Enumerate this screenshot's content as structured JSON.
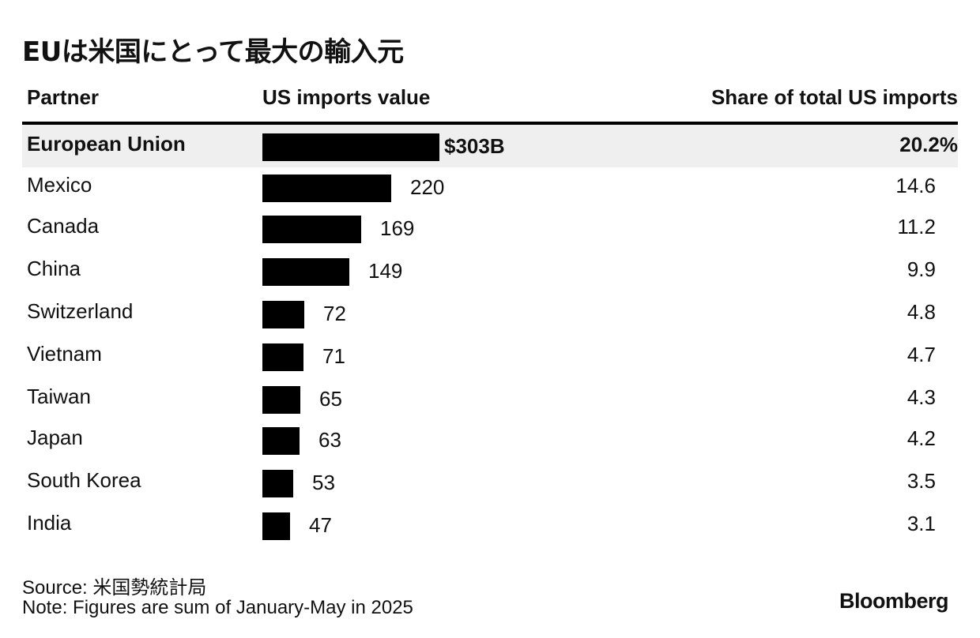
{
  "title": "EUは米国にとって最大の輸入元",
  "columns": {
    "partner": "Partner",
    "value": "US imports value",
    "share": "Share of total US imports"
  },
  "chart_data": {
    "type": "bar",
    "orientation": "horizontal",
    "title": "EUは米国にとって最大の輸入元",
    "categories": [
      "European Union",
      "Mexico",
      "Canada",
      "China",
      "Switzerland",
      "Vietnam",
      "Taiwan",
      "Japan",
      "South Korea",
      "India"
    ],
    "values": [
      303,
      220,
      169,
      149,
      72,
      71,
      65,
      63,
      53,
      47
    ],
    "value_labels": [
      "$303B",
      "220",
      "169",
      "149",
      "72",
      "71",
      "65",
      "63",
      "53",
      "47"
    ],
    "shares": [
      20.2,
      14.6,
      11.2,
      9.9,
      4.8,
      4.7,
      4.3,
      4.2,
      3.5,
      3.1
    ],
    "share_labels": [
      "20.2%",
      "14.6",
      "11.2",
      "9.9",
      "4.8",
      "4.7",
      "4.3",
      "4.2",
      "3.5",
      "3.1"
    ],
    "highlight_index": 0,
    "bar_color": "#000000",
    "highlight_row_color": "#efefef",
    "xlim": [
      0,
      303
    ]
  },
  "footer": {
    "source": "Source: 米国勢統計局",
    "note": "Note: Figures are sum of January-May in 2025",
    "brand": "Bloomberg"
  }
}
